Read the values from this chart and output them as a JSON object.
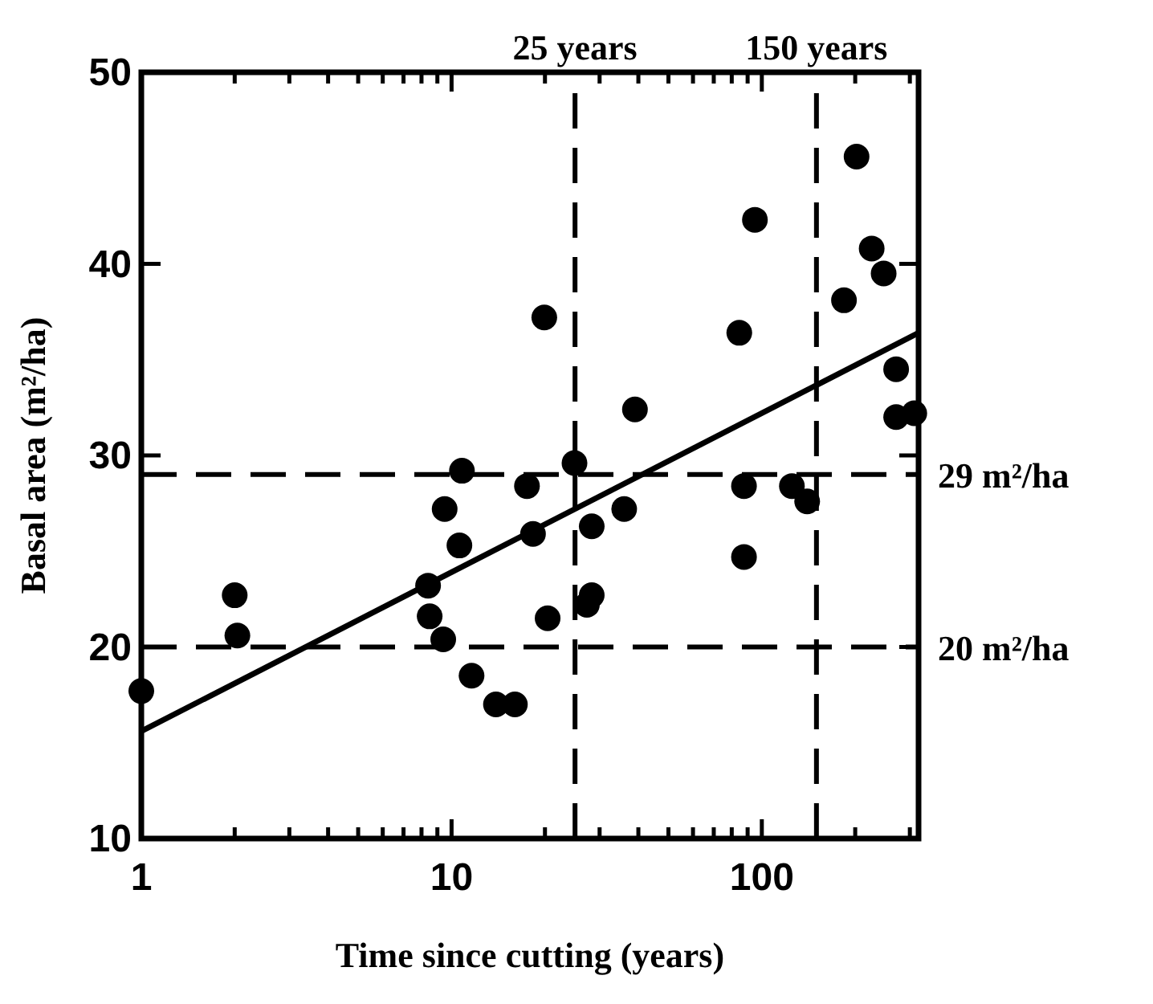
{
  "chart_data": {
    "type": "scatter",
    "xlabel": "Time since cutting (years)",
    "ylabel": "Basal area (m²/ha)",
    "log": "x",
    "marker": "circle",
    "grid": false,
    "xlim": [
      1,
      320
    ],
    "ylim": [
      10,
      50
    ],
    "xticks": [
      1,
      {
        "value": 2,
        "label": null
      },
      {
        "value": 3,
        "label": null
      },
      {
        "value": 4,
        "label": null
      },
      {
        "value": 5,
        "label": null
      },
      {
        "value": 6,
        "label": null
      },
      {
        "value": 7,
        "label": null
      },
      {
        "value": 8,
        "label": null
      },
      {
        "value": 9,
        "label": null
      },
      10,
      {
        "value": 20,
        "label": null
      },
      {
        "value": 30,
        "label": null
      },
      {
        "value": 40,
        "label": null
      },
      {
        "value": 50,
        "label": null
      },
      {
        "value": 60,
        "label": null
      },
      {
        "value": 70,
        "label": null
      },
      {
        "value": 80,
        "label": null
      },
      {
        "value": 90,
        "label": null
      },
      100,
      {
        "value": 200,
        "label": null
      },
      {
        "value": 300,
        "label": null
      }
    ],
    "yticks": [
      10,
      20,
      30,
      40,
      50
    ],
    "series": [
      {
        "type": "scatter",
        "color": "#000000",
        "x": [
          1,
          2,
          2.04,
          8.4,
          8.5,
          9.4,
          9.5,
          10.6,
          10.8,
          11.6,
          13.9,
          16,
          17.5,
          18.3,
          19.9,
          20.4,
          24.9,
          27.3,
          28.3,
          28.3,
          36,
          39,
          84.6,
          87.6,
          87.6,
          95,
          125,
          140,
          184,
          202,
          226,
          247,
          271,
          271,
          310
        ],
        "values": [
          17.7,
          22.7,
          20.6,
          23.2,
          21.6,
          20.4,
          27.2,
          25.3,
          29.2,
          18.5,
          17,
          17,
          28.4,
          25.9,
          37.2,
          21.5,
          29.6,
          22.2,
          22.7,
          26.3,
          27.2,
          32.4,
          36.4,
          28.4,
          24.7,
          42.3,
          28.4,
          27.6,
          38.1,
          45.6,
          40.8,
          39.5,
          34.5,
          32,
          32.2
        ]
      },
      {
        "type": "line",
        "color": "#000000",
        "marker": "none",
        "x": [
          1,
          320
        ],
        "values": [
          15.6,
          36.4
        ]
      }
    ],
    "ref_lines": [
      {
        "axis": "y",
        "value": 29,
        "label": "29 m²/ha",
        "line_style": "dashed",
        "color": "#000000"
      },
      {
        "axis": "y",
        "value": 20,
        "label": "20 m²/ha",
        "line_style": "dashed",
        "color": "#000000"
      },
      {
        "axis": "x",
        "value": 25,
        "label": "25 years",
        "line_style": "dashed",
        "color": "#000000"
      },
      {
        "axis": "x",
        "value": 150,
        "label": "150 years",
        "line_style": "dashed",
        "color": "#000000"
      }
    ]
  }
}
